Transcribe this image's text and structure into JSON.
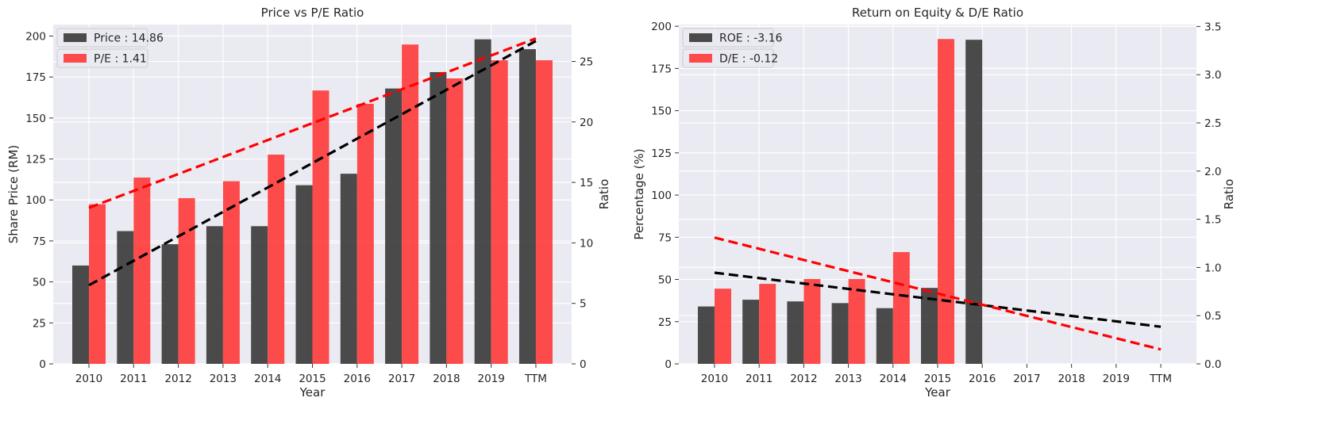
{
  "colors": {
    "plot_bg": "#eaeaf2",
    "grid": "#ffffff",
    "bar_primary": "#333333",
    "bar_secondary": "#ff3333",
    "trend_primary": "#000000",
    "trend_secondary": "#ff0000"
  },
  "chart_data": [
    {
      "type": "bar",
      "title": "Price vs P/E Ratio",
      "xlabel": "Year",
      "ylabel": "Share Price (RM)",
      "y2label": "Ratio",
      "categories": [
        "2010",
        "2011",
        "2012",
        "2013",
        "2014",
        "2015",
        "2016",
        "2017",
        "2018",
        "2019",
        "TTM"
      ],
      "ylim": [
        0,
        207
      ],
      "y2lim": [
        0,
        28.05
      ],
      "yticks": [
        0,
        25,
        50,
        75,
        100,
        125,
        150,
        175,
        200
      ],
      "y2ticks": [
        0,
        5,
        10,
        15,
        20,
        25
      ],
      "series": [
        {
          "name": "Price : 14.86",
          "axis": "left",
          "color": "#333333",
          "values": [
            60,
            81,
            73,
            84,
            84,
            109,
            116,
            168,
            178,
            198,
            192
          ]
        },
        {
          "name": "P/E : 1.41",
          "axis": "right",
          "color": "#ff3333",
          "values": [
            13.2,
            15.4,
            13.7,
            15.1,
            17.3,
            22.6,
            21.5,
            26.4,
            23.6,
            25.1,
            25.1
          ]
        }
      ],
      "trendlines": [
        {
          "axis": "left",
          "color": "#000000",
          "from_index": 0,
          "to_index": 10,
          "start": 48,
          "end": 197
        },
        {
          "axis": "right",
          "color": "#ff0000",
          "from_index": 0,
          "to_index": 10,
          "start": 12.9,
          "end": 26.9
        }
      ],
      "legend": "top-left",
      "grid": true
    },
    {
      "type": "bar",
      "title": "Return on Equity & D/E Ratio",
      "xlabel": "Year",
      "ylabel": "Percentage (%)",
      "y2label": "Ratio",
      "categories": [
        "2010",
        "2011",
        "2012",
        "2013",
        "2014",
        "2015",
        "2016",
        "2017",
        "2018",
        "2019",
        "TTM"
      ],
      "ylim": [
        0,
        201
      ],
      "y2lim": [
        0,
        3.52
      ],
      "yticks": [
        0,
        25,
        50,
        75,
        100,
        125,
        150,
        175,
        200
      ],
      "y2ticks": [
        0.0,
        0.5,
        1.0,
        1.5,
        2.0,
        2.5,
        3.0,
        3.5
      ],
      "series": [
        {
          "name": "ROE : -3.16",
          "axis": "left",
          "color": "#333333",
          "values": [
            34,
            38,
            37,
            36,
            33,
            45,
            192,
            null,
            null,
            null,
            null
          ]
        },
        {
          "name": "D/E : -0.12",
          "axis": "right",
          "color": "#ff3333",
          "values": [
            0.78,
            0.83,
            0.88,
            0.88,
            1.16,
            3.37,
            null,
            null,
            null,
            null,
            null
          ]
        }
      ],
      "trendlines": [
        {
          "axis": "left",
          "color": "#000000",
          "from_index": 0,
          "to_index": 10,
          "start": 54,
          "end": 22
        },
        {
          "axis": "right",
          "color": "#ff0000",
          "from_index": 0,
          "to_index": 10,
          "start": 1.31,
          "end": 0.15
        }
      ],
      "legend": "top-left",
      "grid": true
    }
  ]
}
